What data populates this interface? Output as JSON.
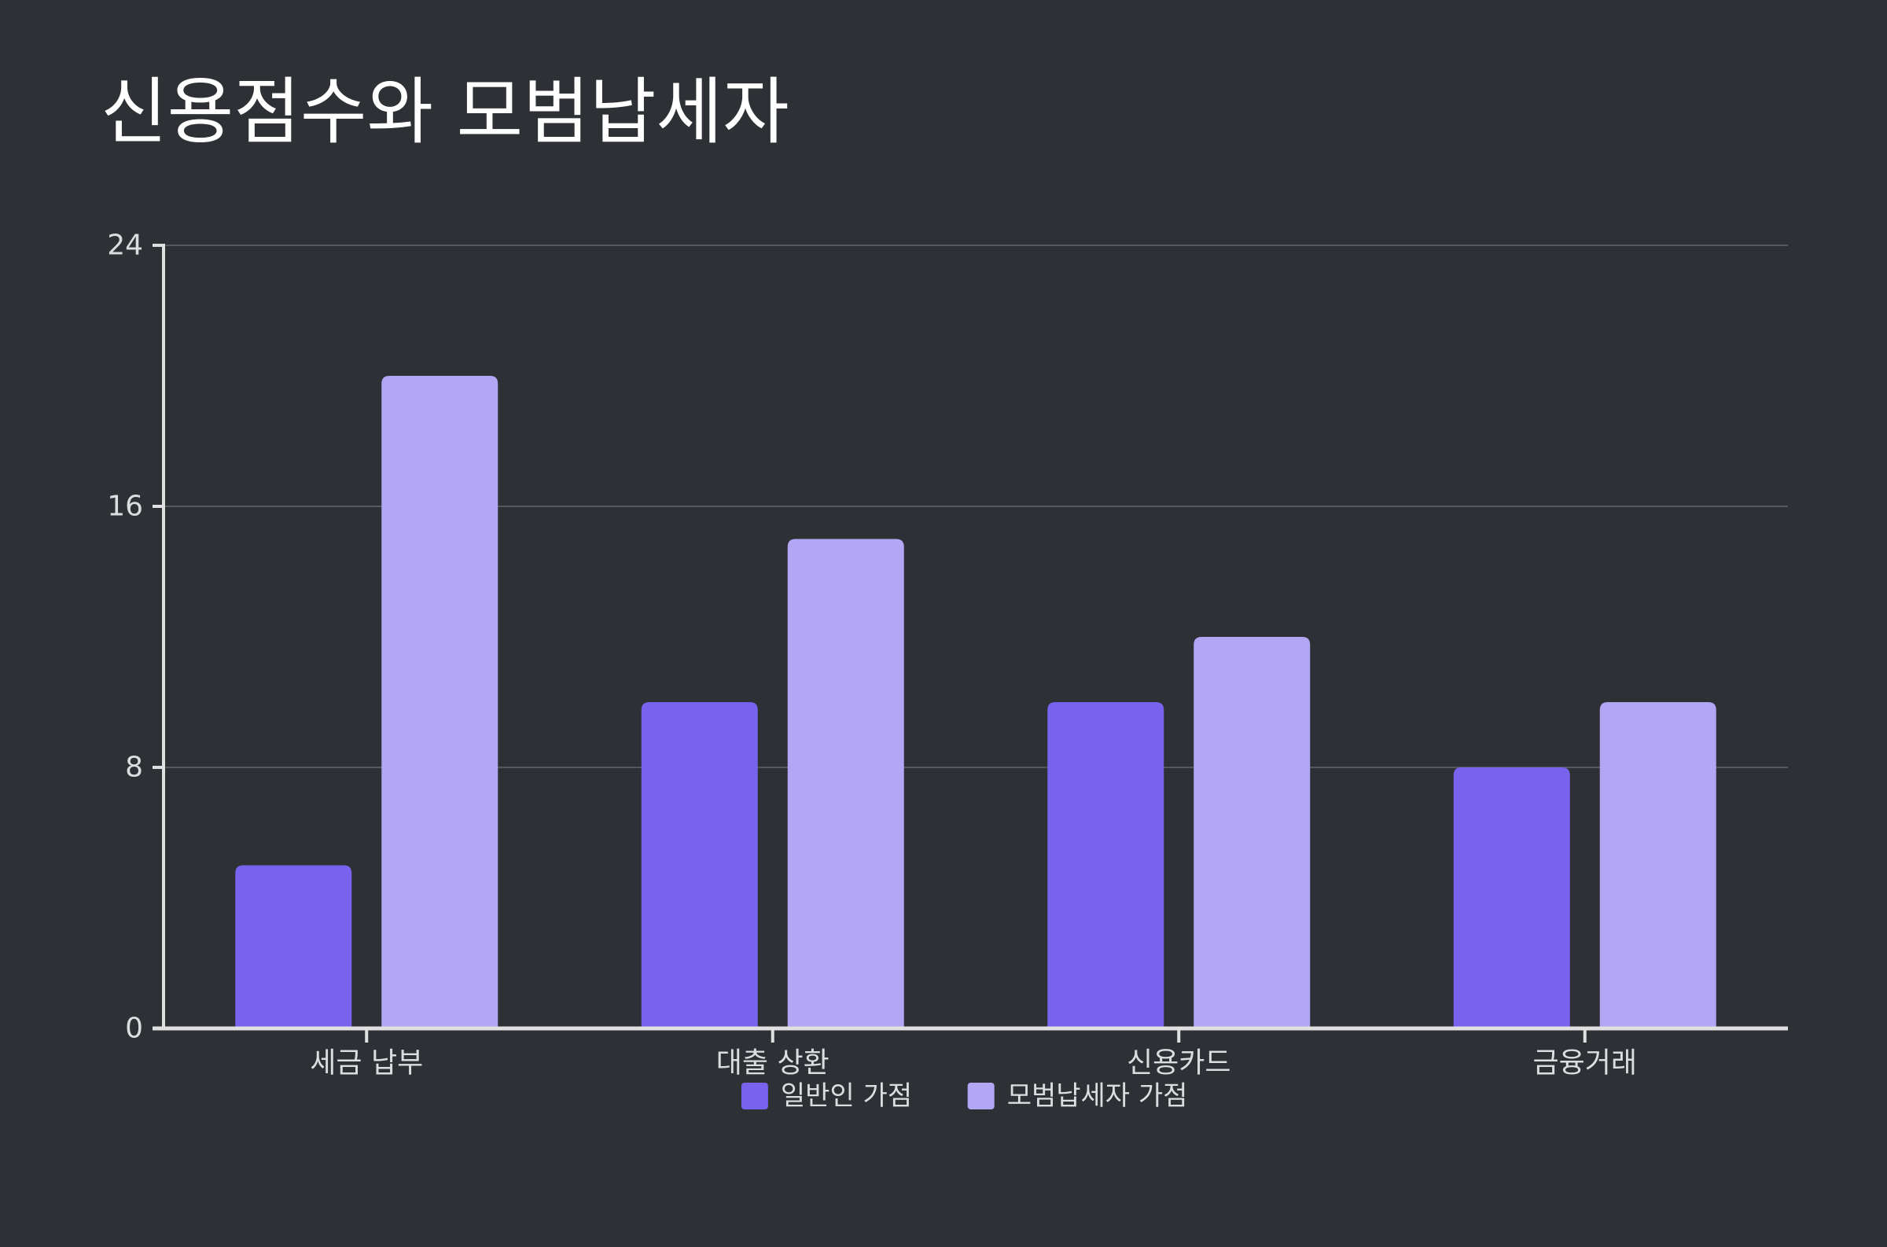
{
  "chart_data": {
    "type": "bar",
    "title": "신용점수와 모범납세자",
    "categories": [
      "세금 납부",
      "대출 상환",
      "신용카드",
      "금융거래"
    ],
    "series": [
      {
        "name": "일반인 가점",
        "values": [
          5,
          10,
          10,
          8
        ],
        "color": "#7862ee"
      },
      {
        "name": "모범납세자 가점",
        "values": [
          20,
          15,
          12,
          10
        ],
        "color": "#b2a6f5"
      }
    ],
    "ylim": [
      0,
      24
    ],
    "yticks": [
      0,
      8,
      16,
      24
    ],
    "xlabel": "",
    "ylabel": "",
    "grid": true,
    "legend": "bottom-center"
  },
  "colors": {
    "background": "#2d3034",
    "text": "#dcdde0",
    "title": "#ffffff",
    "axis": "#e0e0e0",
    "grid": "#55585d"
  }
}
